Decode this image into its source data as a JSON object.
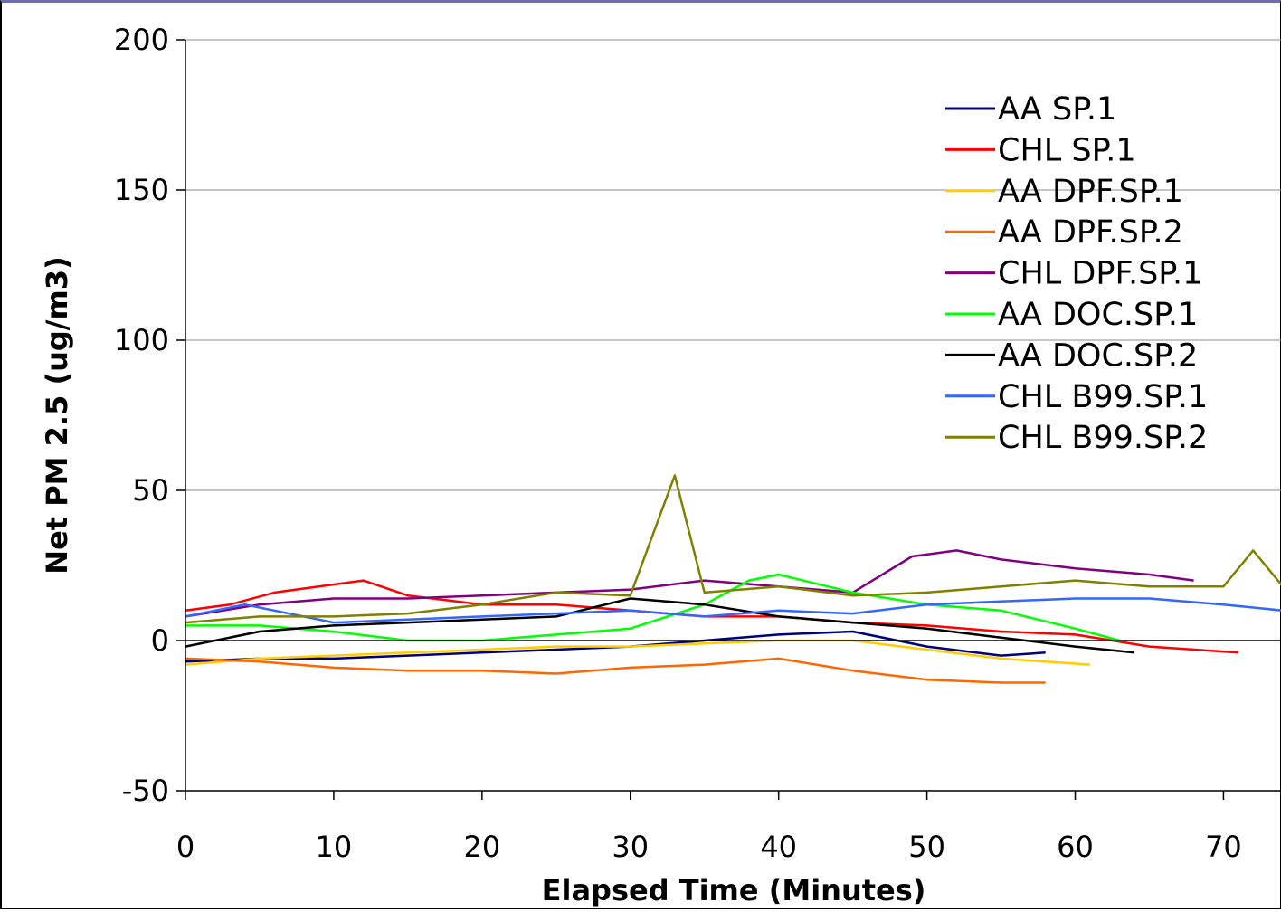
{
  "chart_data": {
    "type": "line",
    "title": "",
    "xlabel": "Elapsed Time (Minutes)",
    "ylabel": "Net PM 2.5 (ug/m3)",
    "xlim": [
      0,
      74
    ],
    "ylim": [
      -50,
      200
    ],
    "x_ticks": [
      0,
      10,
      20,
      30,
      40,
      50,
      60,
      70
    ],
    "y_ticks": [
      -50,
      0,
      50,
      100,
      150,
      200
    ],
    "grid": "horizontal major gridlines",
    "legend_position": "top-right",
    "series": [
      {
        "name": "AA SP.1",
        "color": "#00007f",
        "x": [
          0,
          5,
          10,
          15,
          20,
          25,
          30,
          35,
          40,
          45,
          50,
          55,
          58
        ],
        "y": [
          -7,
          -6,
          -6,
          -5,
          -4,
          -3,
          -2,
          0,
          2,
          3,
          -2,
          -5,
          -4
        ]
      },
      {
        "name": "CHL SP.1",
        "color": "#ff0000",
        "x": [
          0,
          3,
          6,
          9,
          12,
          15,
          20,
          25,
          30,
          35,
          40,
          45,
          50,
          55,
          60,
          65,
          71
        ],
        "y": [
          10,
          12,
          16,
          18,
          20,
          15,
          12,
          12,
          10,
          8,
          8,
          6,
          5,
          3,
          2,
          -2,
          -4
        ]
      },
      {
        "name": "AA DPF.SP.1",
        "color": "#ffcc00",
        "x": [
          0,
          5,
          10,
          15,
          20,
          25,
          30,
          35,
          40,
          45,
          50,
          55,
          61
        ],
        "y": [
          -8,
          -6,
          -5,
          -4,
          -3,
          -2,
          -2,
          -1,
          0,
          0,
          -3,
          -6,
          -8
        ]
      },
      {
        "name": "AA DPF.SP.2",
        "color": "#ff6600",
        "x": [
          0,
          5,
          10,
          15,
          20,
          25,
          30,
          35,
          40,
          45,
          50,
          55,
          58
        ],
        "y": [
          -6,
          -7,
          -9,
          -10,
          -10,
          -11,
          -9,
          -8,
          -6,
          -10,
          -13,
          -14,
          -14
        ]
      },
      {
        "name": "CHL DPF.SP.1",
        "color": "#800080",
        "x": [
          0,
          5,
          10,
          15,
          20,
          25,
          30,
          35,
          40,
          45,
          49,
          52,
          55,
          60,
          65,
          68
        ],
        "y": [
          8,
          12,
          14,
          14,
          15,
          16,
          17,
          20,
          18,
          16,
          28,
          30,
          27,
          24,
          22,
          20
        ]
      },
      {
        "name": "AA DOC.SP.1",
        "color": "#00ff00",
        "x": [
          0,
          5,
          10,
          15,
          20,
          25,
          30,
          35,
          38,
          40,
          45,
          50,
          55,
          60,
          63
        ],
        "y": [
          5,
          5,
          3,
          0,
          0,
          2,
          4,
          12,
          20,
          22,
          16,
          12,
          10,
          4,
          0
        ]
      },
      {
        "name": "AA DOC.SP.2",
        "color": "#000000",
        "x": [
          0,
          5,
          10,
          15,
          20,
          25,
          30,
          35,
          40,
          45,
          50,
          55,
          60,
          64
        ],
        "y": [
          -2,
          3,
          5,
          6,
          7,
          8,
          14,
          12,
          8,
          6,
          4,
          1,
          -2,
          -4
        ]
      },
      {
        "name": "CHL B99.SP.1",
        "color": "#3366ff",
        "x": [
          0,
          4,
          10,
          15,
          20,
          25,
          30,
          35,
          40,
          45,
          50,
          55,
          60,
          65,
          70,
          74
        ],
        "y": [
          8,
          12,
          6,
          7,
          8,
          9,
          10,
          8,
          10,
          9,
          12,
          13,
          14,
          14,
          12,
          10
        ]
      },
      {
        "name": "CHL B99.SP.2",
        "color": "#808000",
        "x": [
          0,
          5,
          10,
          15,
          20,
          25,
          30,
          33,
          35,
          40,
          45,
          50,
          55,
          60,
          65,
          70,
          72,
          74
        ],
        "y": [
          6,
          8,
          8,
          9,
          12,
          16,
          15,
          55,
          16,
          18,
          15,
          16,
          18,
          20,
          18,
          18,
          30,
          18
        ]
      }
    ]
  }
}
